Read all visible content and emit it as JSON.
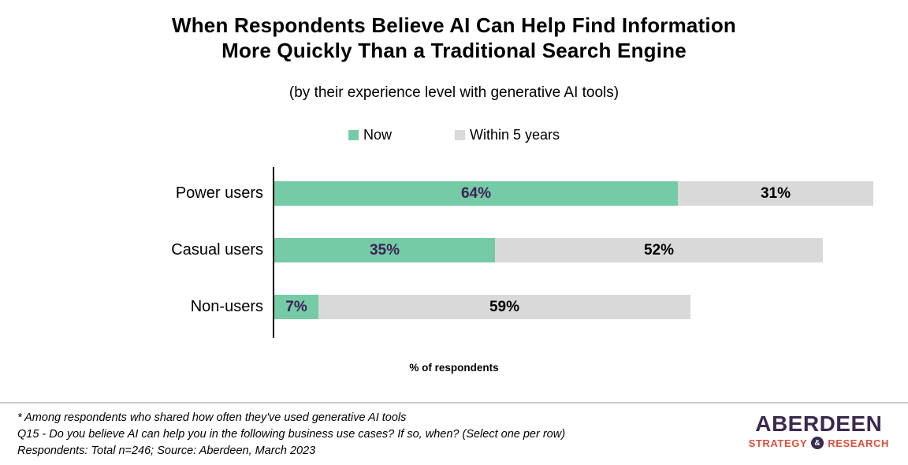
{
  "title": {
    "line1": "When Respondents Believe AI Can Help Find Information",
    "line2": "More Quickly Than a Traditional Search Engine",
    "subtitle": "(by their experience level with generative AI tools)"
  },
  "chart_data": {
    "type": "bar",
    "orientation": "horizontal",
    "stacked": true,
    "title": "When Respondents Believe AI Can Help Find Information More Quickly Than a Traditional Search Engine",
    "subtitle": "(by their experience level with generative AI tools)",
    "categories": [
      "Power users",
      "Casual users",
      "Non-users"
    ],
    "series": [
      {
        "name": "Now",
        "color": "#74CBA6",
        "label_color": "#3E2155",
        "values": [
          64,
          35,
          7
        ]
      },
      {
        "name": "Within 5 years",
        "color": "#D9D9D9",
        "label_color": "#000000",
        "values": [
          31,
          52,
          59
        ]
      }
    ],
    "value_suffix": "%",
    "xlabel": "% of respondents",
    "xlim": [
      0,
      100
    ],
    "grid": false,
    "legend_position": "top"
  },
  "legend": {
    "items": [
      {
        "label": "Now",
        "color": "#74CBA6"
      },
      {
        "label": "Within 5 years",
        "color": "#D9D9D9"
      }
    ]
  },
  "xlabel": "% of respondents",
  "footer": {
    "note1": "* Among respondents who shared how often they've used generative AI tools",
    "note2": "Q15 - Do you believe AI can help you in the following business use cases? If so, when? (Select one per row)",
    "note3": "Respondents: Total n=246; Source: Aberdeen, March 2023"
  },
  "logo": {
    "name": "ABERDEEN",
    "tagline_left": "STRATEGY",
    "ampersand": "&",
    "tagline_right": "RESEARCH",
    "purple": "#3B2A50",
    "orange": "#D9503C"
  }
}
